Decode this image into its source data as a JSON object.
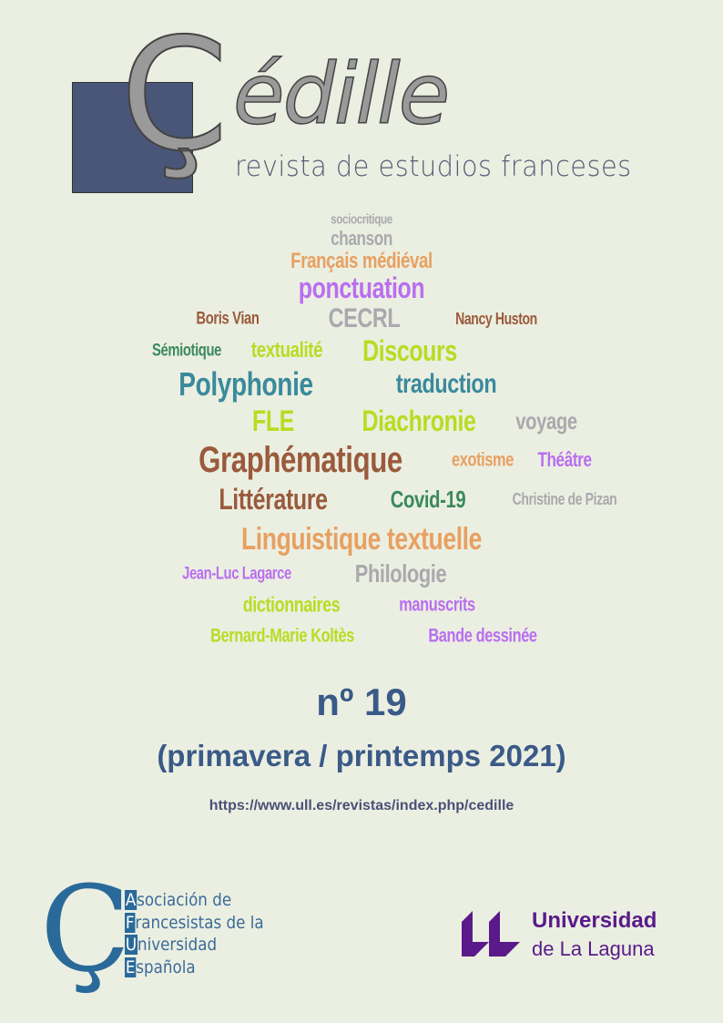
{
  "journal": {
    "logo_letter": "Ç",
    "logo_rest": "édille",
    "subtitle": "revista de estudios franceses",
    "brand_color": "#4a5678"
  },
  "word_cloud": [
    {
      "text": "sociocritique",
      "color": "#a9a9ae"
    },
    {
      "text": "chanson",
      "color": "#a9a9ae"
    },
    {
      "text": "Français médiéval",
      "color": "#e8a062"
    },
    {
      "text": "ponctuation",
      "color": "#b96ef0"
    },
    {
      "text": "Nancy Huston",
      "color": "#9a5a3c"
    },
    {
      "text": "CECRL",
      "color": "#a9a9ae"
    },
    {
      "text": "Boris Vian",
      "color": "#9a5a3c"
    },
    {
      "text": "Sémiotique",
      "color": "#3a8a5c"
    },
    {
      "text": "Graphématique",
      "color": "#9a5a3c"
    },
    {
      "text": "Discours",
      "color": "#b8dc22"
    },
    {
      "text": "textualité",
      "color": "#b8dc22"
    },
    {
      "text": "traduction",
      "color": "#3a8a9c"
    },
    {
      "text": "Polyphonie",
      "color": "#3a8a9c"
    },
    {
      "text": "Diachronie",
      "color": "#b8dc22"
    },
    {
      "text": "FLE",
      "color": "#b8dc22"
    },
    {
      "text": "voyage",
      "color": "#a9a9ae"
    },
    {
      "text": "Christine de Pizan",
      "color": "#a9a9ae"
    },
    {
      "text": "exotisme",
      "color": "#e8a062"
    },
    {
      "text": "Théâtre",
      "color": "#b96ef0"
    },
    {
      "text": "Littérature",
      "color": "#9a5a3c"
    },
    {
      "text": "Covid-19",
      "color": "#3a8a5c"
    },
    {
      "text": "Linguistique textuelle",
      "color": "#e8a062"
    },
    {
      "text": "Jean-Luc Lagarce",
      "color": "#b96ef0"
    },
    {
      "text": "Philologie",
      "color": "#a9a9ae"
    },
    {
      "text": "dictionnaires",
      "color": "#b8dc22"
    },
    {
      "text": "manuscrits",
      "color": "#b96ef0"
    },
    {
      "text": "Bernard-Marie Koltès",
      "color": "#b8dc22"
    },
    {
      "text": "Bande dessinée",
      "color": "#b96ef0"
    }
  ],
  "issue": {
    "number": "nº 19",
    "season": "(primavera / printemps 2021)",
    "url": "https://www.ull.es/revistas/index.php/cedille"
  },
  "afue": {
    "logo_letter": "Ç",
    "lines": [
      {
        "initial": "A",
        "rest": "sociación de"
      },
      {
        "initial": "F",
        "rest": "rancesistas de la"
      },
      {
        "initial": "U",
        "rest": "niversidad"
      },
      {
        "initial": "E",
        "rest": "spañola"
      }
    ],
    "color": "#2a6a9a"
  },
  "ull": {
    "line1": "Universidad",
    "line2": "de La Laguna",
    "color": "#5a1a8a"
  }
}
